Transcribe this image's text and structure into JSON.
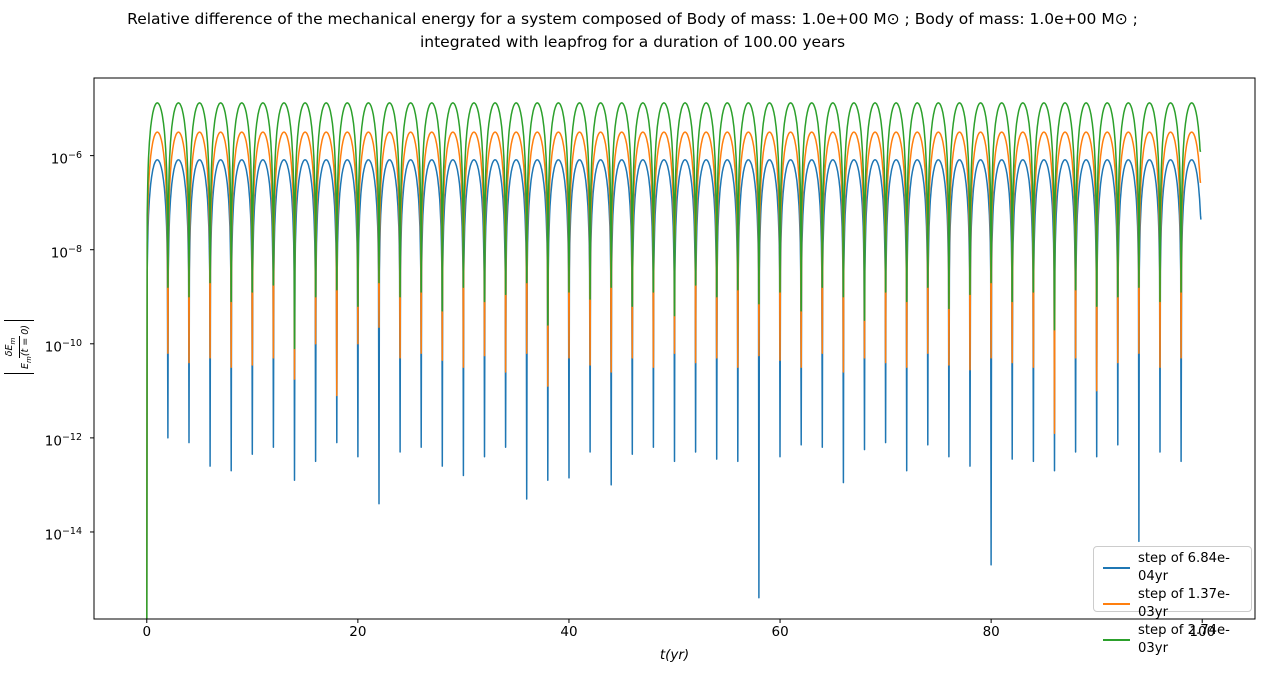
{
  "chart_data": {
    "type": "line",
    "title_line1": "Relative difference of the mechanical energy for a system composed of Body of mass: 1.0e+00 M⊙ ; Body of mass: 1.0e+00 M⊙ ;",
    "title_line2": "integrated with leapfrog for a duration of 100.00 years",
    "xlabel": "t(yr)",
    "ylabel": {
      "plain": "|δEm/Em(t=0)|",
      "num_base": "δE",
      "num_sub": "m",
      "den_base": "E",
      "den_sub": "m",
      "den_rest": "(t = 0)"
    },
    "xlim": [
      -5,
      105
    ],
    "ylim_log10": [
      -15.85,
      -4.35
    ],
    "grid": false,
    "yscale": "log",
    "xticks": [
      {
        "label": "0",
        "value": 0
      },
      {
        "label": "20",
        "value": 20
      },
      {
        "label": "40",
        "value": 40
      },
      {
        "label": "60",
        "value": 60
      },
      {
        "label": "80",
        "value": 80
      },
      {
        "label": "100",
        "value": 100
      }
    ],
    "yticks": [
      {
        "base": "10",
        "exp": "−6",
        "log10": -6
      },
      {
        "base": "10",
        "exp": "−8",
        "log10": -8
      },
      {
        "base": "10",
        "exp": "−10",
        "log10": -10
      },
      {
        "base": "10",
        "exp": "−12",
        "log10": -12
      },
      {
        "base": "10",
        "exp": "−14",
        "log10": -14
      }
    ],
    "legend_position": "lower right",
    "duration_years": 100.0,
    "arch_period_yr": 2.0,
    "arch_shape_exponent": 2,
    "series": [
      {
        "label": "step of 6.84e-04yr",
        "color": "#1f77b4",
        "step_yr": 0.000684,
        "peak_log10": -6.09,
        "start_log10": -16,
        "end_log10": -7.36,
        "dips_log10": [
          -12.0,
          -12.1,
          -12.6,
          -12.7,
          -12.35,
          -12.2,
          -12.9,
          -12.5,
          -12.1,
          -12.4,
          -13.4,
          -12.3,
          -12.2,
          -12.6,
          -12.8,
          -12.4,
          -12.2,
          -13.3,
          -12.9,
          -12.85,
          -12.3,
          -13.0,
          -12.35,
          -12.2,
          -12.5,
          -12.3,
          -12.45,
          -12.5,
          -15.4,
          -12.4,
          -12.15,
          -12.2,
          -12.95,
          -12.25,
          -12.1,
          -12.7,
          -12.15,
          -12.4,
          -12.6,
          -14.7,
          -12.45,
          -12.5,
          -12.7,
          -12.3,
          -12.4,
          -12.15,
          -14.2,
          -12.3,
          -12.5
        ]
      },
      {
        "label": "step of 1.37e-03yr",
        "color": "#ff7f0e",
        "step_yr": 0.00137,
        "peak_log10": -5.5,
        "start_log10": -16,
        "end_log10": -6.58,
        "dips_log10": [
          -10.2,
          -10.4,
          -10.3,
          -10.5,
          -10.45,
          -10.3,
          -10.75,
          -10.0,
          -11.1,
          -10.0,
          -9.65,
          -10.3,
          -10.2,
          -10.35,
          -10.5,
          -10.25,
          -10.6,
          -10.2,
          -10.9,
          -10.3,
          -10.45,
          -10.6,
          -10.3,
          -10.5,
          -10.2,
          -10.4,
          -10.3,
          -10.5,
          -10.25,
          -10.35,
          -10.5,
          -10.2,
          -10.6,
          -10.3,
          -10.4,
          -10.5,
          -10.2,
          -10.45,
          -10.55,
          -10.3,
          -10.4,
          -10.5,
          -11.9,
          -10.3,
          -11.0,
          -10.4,
          -10.2,
          -10.5,
          -10.3
        ]
      },
      {
        "label": "step of 2.74e-03yr",
        "color": "#2ca02c",
        "step_yr": 0.00274,
        "peak_log10": -4.88,
        "start_log10": -16,
        "end_log10": -5.92,
        "dips_log10": [
          -8.8,
          -9.0,
          -8.7,
          -9.1,
          -8.9,
          -8.75,
          -10.1,
          -9.0,
          -8.85,
          -9.2,
          -8.7,
          -9.0,
          -8.9,
          -9.3,
          -8.8,
          -9.1,
          -8.95,
          -8.7,
          -9.6,
          -8.9,
          -9.05,
          -8.8,
          -9.2,
          -8.9,
          -9.4,
          -8.75,
          -9.0,
          -8.85,
          -9.15,
          -8.9,
          -9.3,
          -8.8,
          -9.0,
          -9.5,
          -8.9,
          -9.1,
          -8.8,
          -9.25,
          -8.95,
          -8.7,
          -9.1,
          -8.9,
          -9.7,
          -8.85,
          -9.2,
          -9.0,
          -8.8,
          -9.1,
          -8.9
        ]
      }
    ]
  }
}
